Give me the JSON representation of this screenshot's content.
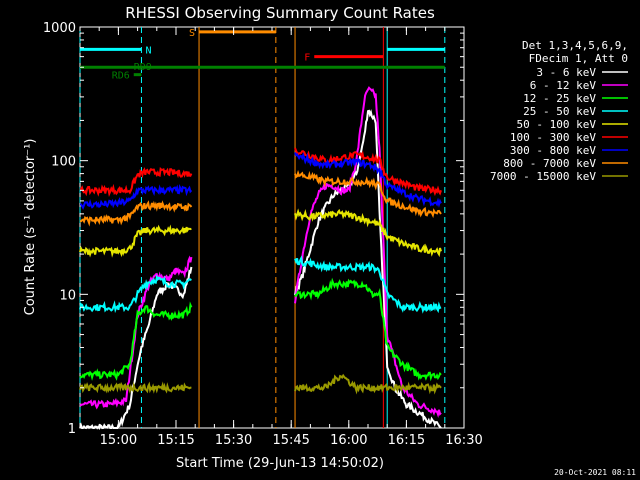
{
  "chart_data": {
    "type": "line",
    "title": "RHESSI Observing Summary Count Rates",
    "xlabel": "Start Time (29-Jun-13 14:50:02)",
    "ylabel": "Count Rate (s⁻¹ detector⁻¹)",
    "y_scale": "log",
    "ylim": [
      1,
      1000
    ],
    "xlim": [
      "14:50",
      "16:30"
    ],
    "x_ticks": [
      "15:00",
      "15:15",
      "15:30",
      "15:45",
      "16:00",
      "16:15",
      "16:30"
    ],
    "y_ticks": [
      "1",
      "10",
      "100",
      "1000"
    ],
    "footer_date": "20-Oct-2021 08:11",
    "legend_header": [
      "Det 1,3,4,5,6,9,",
      "FDecim 1, Att 0"
    ],
    "series": [
      {
        "name": "3 - 6 keV",
        "color": "#ffffff",
        "segments": [
          {
            "x": [
              "14:50",
              "14:55",
              "15:00",
              "15:03",
              "15:05",
              "15:06",
              "15:08",
              "15:10",
              "15:13",
              "15:15",
              "15:17",
              "15:19"
            ],
            "y": [
              1,
              1,
              1,
              1.5,
              3,
              4,
              6,
              10,
              12,
              11,
              10,
              16
            ]
          },
          {
            "x": [
              "15:46",
              "15:48",
              "15:50",
              "15:52",
              "15:54",
              "15:56",
              "15:58",
              "16:00",
              "16:02",
              "16:04",
              "16:05",
              "16:07",
              "16:08",
              "16:10",
              "16:12",
              "16:15",
              "16:20",
              "16:24"
            ],
            "y": [
              10,
              14,
              22,
              35,
              45,
              55,
              60,
              65,
              80,
              150,
              240,
              200,
              40,
              3,
              2,
              1.5,
              1.2,
              1
            ]
          }
        ]
      },
      {
        "name": "6 - 12 keV",
        "color": "#ff00ff",
        "segments": [
          {
            "x": [
              "14:50",
              "14:58",
              "15:02",
              "15:05",
              "15:08",
              "15:10",
              "15:13",
              "15:15",
              "15:17",
              "15:19"
            ],
            "y": [
              1.5,
              1.5,
              1.6,
              7,
              12,
              14,
              13,
              15,
              14,
              19
            ]
          },
          {
            "x": [
              "15:46",
              "15:48",
              "15:50",
              "15:52",
              "15:54",
              "15:56",
              "15:58",
              "16:00",
              "16:02",
              "16:04",
              "16:05",
              "16:07",
              "16:08",
              "16:10",
              "16:14",
              "16:18",
              "16:24"
            ],
            "y": [
              9,
              20,
              40,
              55,
              65,
              65,
              60,
              60,
              100,
              280,
              340,
              310,
              120,
              5,
              2,
              1.5,
              1.3
            ]
          }
        ]
      },
      {
        "name": "12 - 25 keV",
        "color": "#00ff00",
        "segments": [
          {
            "x": [
              "14:50",
              "14:55",
              "15:00",
              "15:03",
              "15:05",
              "15:07",
              "15:10",
              "15:13",
              "15:15",
              "15:17",
              "15:19"
            ],
            "y": [
              2.5,
              2.5,
              2.5,
              3,
              7,
              8,
              7,
              7,
              7,
              7,
              8
            ]
          },
          {
            "x": [
              "15:46",
              "15:48",
              "15:52",
              "15:56",
              "16:00",
              "16:04",
              "16:06",
              "16:08",
              "16:10",
              "16:14",
              "16:18",
              "16:24"
            ],
            "y": [
              10,
              10,
              10,
              12,
              12,
              12,
              10,
              10,
              4,
              3,
              2.5,
              2.5
            ]
          }
        ]
      },
      {
        "name": "25 - 50 keV",
        "color": "#00ffff",
        "segments": [
          {
            "x": [
              "14:50",
              "14:55",
              "15:00",
              "15:03",
              "15:05",
              "15:07",
              "15:10",
              "15:13",
              "15:15",
              "15:17",
              "15:19"
            ],
            "y": [
              8,
              8,
              8,
              8,
              10,
              12,
              13,
              12,
              12,
              12,
              13
            ]
          },
          {
            "x": [
              "15:46",
              "15:50",
              "15:54",
              "15:58",
              "16:02",
              "16:06",
              "16:08",
              "16:10",
              "16:14",
              "16:18",
              "16:24"
            ],
            "y": [
              18,
              17,
              16,
              16,
              16,
              16,
              15,
              10,
              8,
              8,
              8
            ]
          }
        ]
      },
      {
        "name": "50 - 100 keV",
        "color": "#e5e500",
        "segments": [
          {
            "x": [
              "14:50",
              "14:55",
              "15:00",
              "15:03",
              "15:05",
              "15:07",
              "15:10",
              "15:13",
              "15:15",
              "15:17",
              "15:19"
            ],
            "y": [
              21,
              21,
              21,
              22,
              28,
              30,
              30,
              30,
              30,
              30,
              31
            ]
          },
          {
            "x": [
              "15:46",
              "15:50",
              "15:54",
              "15:58",
              "16:02",
              "16:06",
              "16:08",
              "16:10",
              "16:14",
              "16:18",
              "16:24"
            ],
            "y": [
              40,
              38,
              39,
              40,
              38,
              35,
              33,
              27,
              24,
              22,
              21
            ]
          }
        ]
      },
      {
        "name": "100 - 300 keV",
        "color": "#ff0000",
        "segments": [
          {
            "x": [
              "14:50",
              "14:55",
              "15:00",
              "15:03",
              "15:05",
              "15:07",
              "15:10",
              "15:13",
              "15:15",
              "15:17",
              "15:19"
            ],
            "y": [
              60,
              60,
              60,
              60,
              78,
              82,
              82,
              82,
              81,
              80,
              80
            ]
          },
          {
            "x": [
              "15:46",
              "15:50",
              "15:54",
              "15:58",
              "16:02",
              "16:06",
              "16:08",
              "16:10",
              "16:14",
              "16:18",
              "16:24"
            ],
            "y": [
              120,
              110,
              100,
              105,
              110,
              105,
              100,
              75,
              68,
              62,
              60
            ]
          }
        ]
      },
      {
        "name": "300 - 800 keV",
        "color": "#0000ff",
        "segments": [
          {
            "x": [
              "14:50",
              "14:55",
              "15:00",
              "15:03",
              "15:05",
              "15:07",
              "15:10",
              "15:13",
              "15:15",
              "15:17",
              "15:19"
            ],
            "y": [
              47,
              47,
              48,
              50,
              60,
              60,
              60,
              60,
              60,
              60,
              60
            ]
          },
          {
            "x": [
              "15:46",
              "15:50",
              "15:54",
              "15:58",
              "16:02",
              "16:06",
              "16:08",
              "16:10",
              "16:14",
              "16:18",
              "16:24"
            ],
            "y": [
              110,
              100,
              92,
              95,
              98,
              92,
              85,
              65,
              58,
              52,
              48
            ]
          }
        ]
      },
      {
        "name": "800 - 7000 keV",
        "color": "#ff8c00",
        "segments": [
          {
            "x": [
              "14:50",
              "14:55",
              "15:00",
              "15:03",
              "15:05",
              "15:07",
              "15:10",
              "15:13",
              "15:15",
              "15:17",
              "15:19"
            ],
            "y": [
              36,
              36,
              36,
              38,
              45,
              46,
              46,
              46,
              45,
              45,
              45
            ]
          },
          {
            "x": [
              "15:46",
              "15:50",
              "15:54",
              "15:58",
              "16:02",
              "16:06",
              "16:08",
              "16:10",
              "16:14",
              "16:18",
              "16:24"
            ],
            "y": [
              80,
              75,
              70,
              70,
              70,
              68,
              65,
              50,
              46,
              42,
              40
            ]
          }
        ]
      },
      {
        "name": "7000 - 15000 keV",
        "color": "#999900",
        "segments": [
          {
            "x": [
              "14:50",
              "14:55",
              "15:00",
              "15:03",
              "15:05",
              "15:07",
              "15:10",
              "15:13",
              "15:15",
              "15:17",
              "15:19"
            ],
            "y": [
              2,
              2,
              2,
              2,
              2,
              2,
              2,
              2,
              2,
              2,
              2
            ]
          },
          {
            "x": [
              "15:46",
              "15:50",
              "15:54",
              "15:58",
              "16:02",
              "16:06",
              "16:08",
              "16:10",
              "16:14",
              "16:18",
              "16:24"
            ],
            "y": [
              2,
              2,
              2,
              2.5,
              2,
              2,
              2,
              2,
              2,
              2,
              2
            ]
          }
        ]
      }
    ],
    "state_bars": [
      {
        "label": "N",
        "color": "#00ffff",
        "y": 680,
        "segments": [
          [
            "14:50",
            "15:06"
          ],
          [
            "16:10",
            "16:25"
          ]
        ]
      },
      {
        "label": "S",
        "color": "#ff8c00",
        "y": 920,
        "segments": [
          [
            "15:21",
            "15:41"
          ]
        ]
      },
      {
        "label": "F",
        "color": "#ff0000",
        "y": 600,
        "segments": [
          [
            "15:51",
            "16:09"
          ]
        ]
      },
      {
        "label": "RD9",
        "color": "#008000",
        "y": 500,
        "segments": [
          [
            "14:50",
            "16:25"
          ]
        ]
      },
      {
        "label": "RD6",
        "color": "#008000",
        "y": 440,
        "segments": [
          [
            "15:04",
            "15:06"
          ]
        ]
      }
    ],
    "vlines": [
      {
        "x": "14:50",
        "color": "#00ffff",
        "style": "dashed"
      },
      {
        "x": "15:06",
        "color": "#00ffff",
        "style": "dashed"
      },
      {
        "x": "15:21",
        "color": "#ff8c00",
        "style": "solid"
      },
      {
        "x": "15:41",
        "color": "#ff8c00",
        "style": "dashed"
      },
      {
        "x": "15:46",
        "color": "#ff8c00",
        "style": "solid"
      },
      {
        "x": "16:09",
        "color": "#ff0000",
        "style": "solid"
      },
      {
        "x": "16:10",
        "color": "#00ffff",
        "style": "solid"
      },
      {
        "x": "16:25",
        "color": "#00ffff",
        "style": "dashed"
      }
    ]
  }
}
